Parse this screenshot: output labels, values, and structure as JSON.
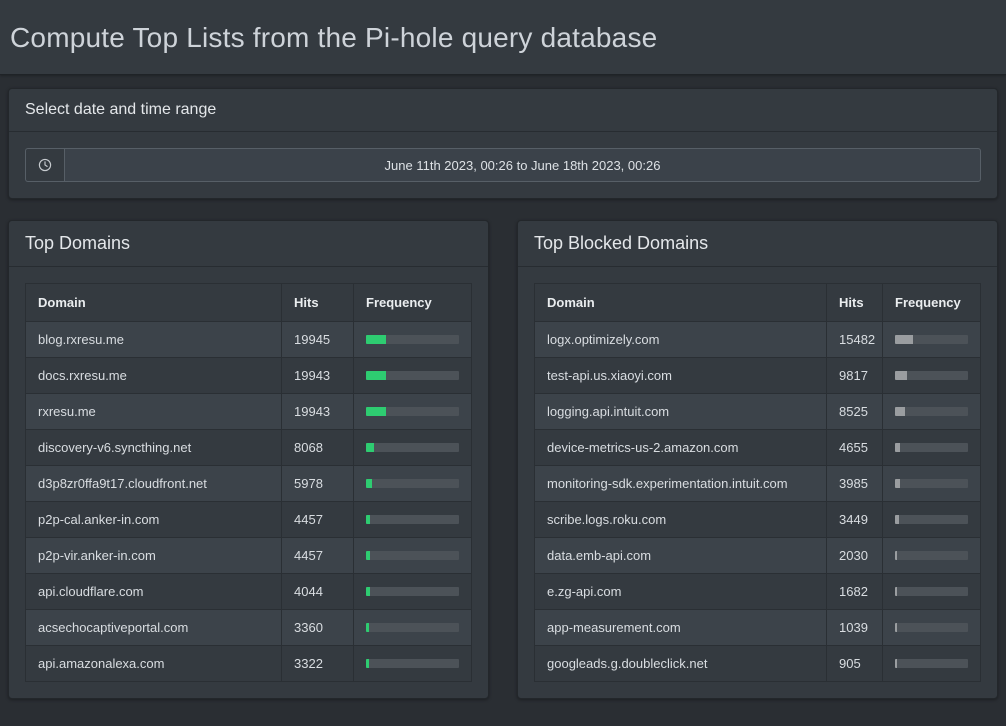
{
  "header": {
    "title": "Compute Top Lists from the Pi-hole query database"
  },
  "date_panel": {
    "title": "Select date and time range",
    "range_value": "June 11th 2023, 00:26 to June 18th 2023, 00:26",
    "icon": "clock-icon"
  },
  "colors": {
    "green_bar": "#2ecc71",
    "gray_bar": "#9a9da0",
    "bar_track": "#4c5258"
  },
  "top_domains": {
    "title": "Top Domains",
    "columns": [
      "Domain",
      "Hits",
      "Frequency"
    ],
    "rows": [
      {
        "domain": "blog.rxresu.me",
        "hits": "19945",
        "percent": 21
      },
      {
        "domain": "docs.rxresu.me",
        "hits": "19943",
        "percent": 21
      },
      {
        "domain": "rxresu.me",
        "hits": "19943",
        "percent": 21
      },
      {
        "domain": "discovery-v6.syncthing.net",
        "hits": "8068",
        "percent": 8.5
      },
      {
        "domain": "d3p8zr0ffa9t17.cloudfront.net",
        "hits": "5978",
        "percent": 6.3
      },
      {
        "domain": "p2p-cal.anker-in.com",
        "hits": "4457",
        "percent": 4.7
      },
      {
        "domain": "p2p-vir.anker-in.com",
        "hits": "4457",
        "percent": 4.7
      },
      {
        "domain": "api.cloudflare.com",
        "hits": "4044",
        "percent": 4.3
      },
      {
        "domain": "acsechocaptiveportal.com",
        "hits": "3360",
        "percent": 3.5
      },
      {
        "domain": "api.amazonalexa.com",
        "hits": "3322",
        "percent": 3.5
      }
    ]
  },
  "top_blocked_domains": {
    "title": "Top Blocked Domains",
    "columns": [
      "Domain",
      "Hits",
      "Frequency"
    ],
    "rows": [
      {
        "domain": "logx.optimizely.com",
        "hits": "15482",
        "percent": 25
      },
      {
        "domain": "test-api.us.xiaoyi.com",
        "hits": "9817",
        "percent": 16
      },
      {
        "domain": "logging.api.intuit.com",
        "hits": "8525",
        "percent": 14
      },
      {
        "domain": "device-metrics-us-2.amazon.com",
        "hits": "4655",
        "percent": 7.5
      },
      {
        "domain": "monitoring-sdk.experimentation.intuit.com",
        "hits": "3985",
        "percent": 6.4
      },
      {
        "domain": "scribe.logs.roku.com",
        "hits": "3449",
        "percent": 5.6
      },
      {
        "domain": "data.emb-api.com",
        "hits": "2030",
        "percent": 3.3
      },
      {
        "domain": "e.zg-api.com",
        "hits": "1682",
        "percent": 2.7
      },
      {
        "domain": "app-measurement.com",
        "hits": "1039",
        "percent": 1.7
      },
      {
        "domain": "googleads.g.doubleclick.net",
        "hits": "905",
        "percent": 1.5
      }
    ]
  }
}
